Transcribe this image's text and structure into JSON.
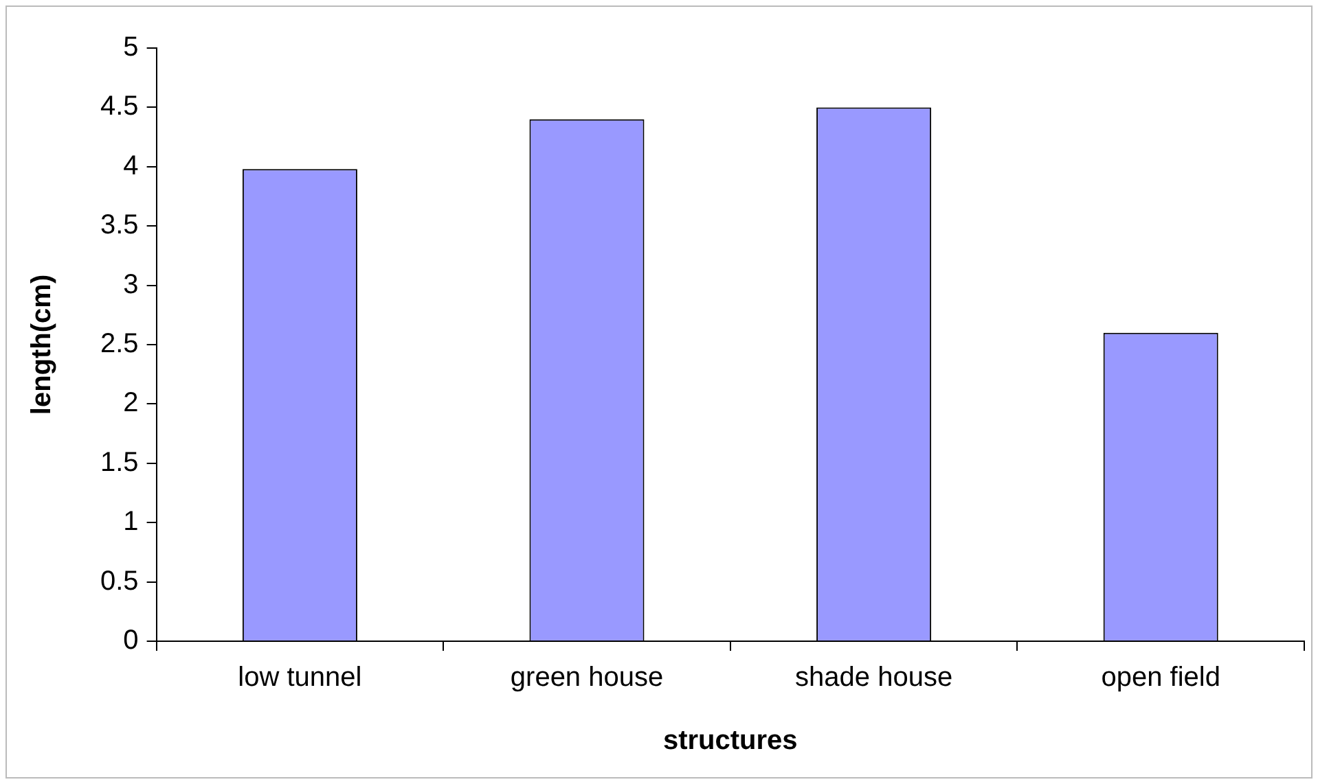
{
  "chart_data": {
    "type": "bar",
    "categories": [
      "low tunnel",
      "green house",
      "shade house",
      "open field"
    ],
    "values": [
      3.98,
      4.4,
      4.5,
      2.6
    ],
    "color": "#9999ff",
    "xlabel": "structures",
    "ylabel": "length(cm)",
    "ylim": [
      0,
      5
    ],
    "yticks": [
      0,
      0.5,
      1,
      1.5,
      2,
      2.5,
      3,
      3.5,
      4,
      4.5,
      5
    ],
    "grid": false,
    "legend": false
  }
}
